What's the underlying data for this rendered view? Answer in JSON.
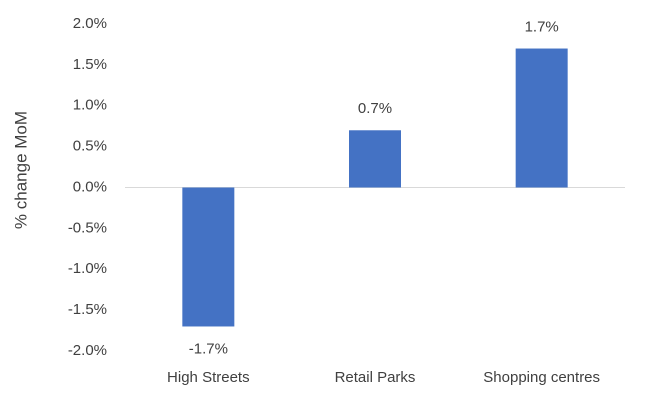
{
  "chart_data": {
    "type": "bar",
    "y_label": "% change MoM",
    "categories": [
      "High Streets",
      "Retail Parks",
      "Shopping centres"
    ],
    "values": [
      -1.7,
      0.7,
      1.7
    ],
    "value_labels": [
      "-1.7%",
      "0.7%",
      "1.7%"
    ],
    "color": "#4472c4",
    "ylim": [
      -2,
      2
    ],
    "yticks": [
      {
        "value": -2,
        "label": "-2.0%"
      },
      {
        "value": -1.5,
        "label": "-1.5%"
      },
      {
        "value": -1,
        "label": "-1.0%"
      },
      {
        "value": -0.5,
        "label": "-0.5%"
      },
      {
        "value": 0,
        "label": "0.0%"
      },
      {
        "value": 0.5,
        "label": "0.5%"
      },
      {
        "value": 1,
        "label": "1.0%"
      },
      {
        "value": 1.5,
        "label": "1.5%"
      },
      {
        "value": 2,
        "label": "2.0%"
      }
    ],
    "grid": false
  }
}
